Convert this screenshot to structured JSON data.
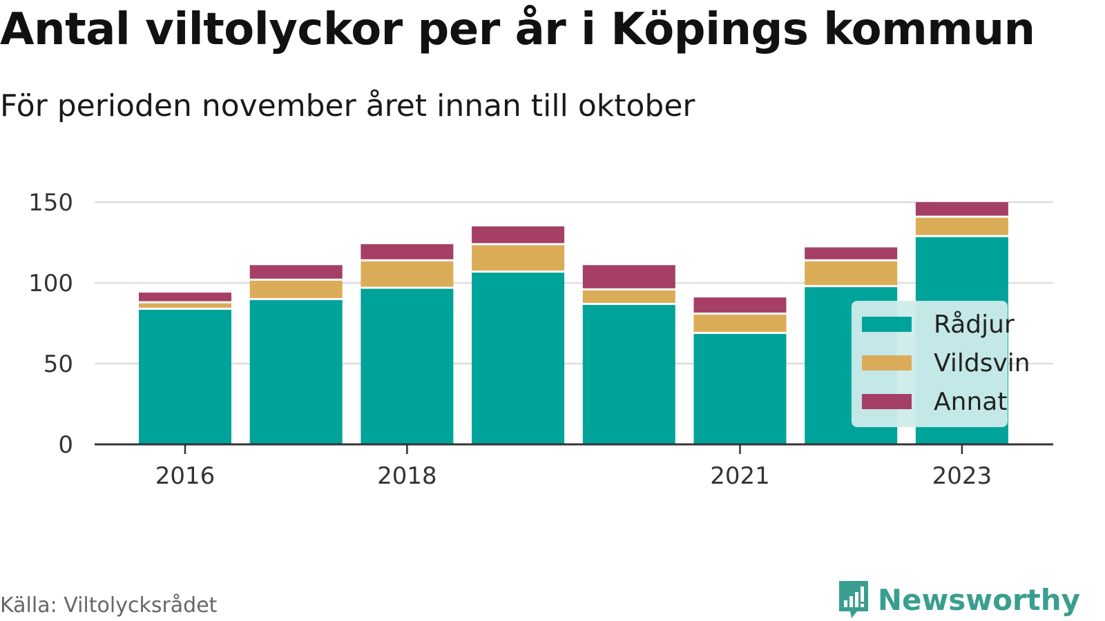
{
  "title": "Antal viltolyckor per år i Köpings kommun",
  "subtitle": "För perioden november året innan till oktober",
  "source": "Källa: Viltolycksrådet",
  "brand": "Newsworthy",
  "colors": {
    "radjur": "#00a39a",
    "vildsvin": "#dbac57",
    "annat": "#a63f66",
    "grid": "#dddddd",
    "axis": "#333333",
    "legend_bg": "#cdeceb",
    "brand": "#3a9e8f"
  },
  "chart_data": {
    "type": "bar",
    "stacked": true,
    "categories": [
      "2016",
      "2017",
      "2018",
      "2019",
      "2020",
      "2021",
      "2022",
      "2023"
    ],
    "x_tick_labels": [
      "2016",
      "",
      "2018",
      "",
      "",
      "2021",
      "",
      "2023"
    ],
    "series": [
      {
        "name": "Rådjur",
        "values": [
          84,
          90,
          97,
          107,
          87,
          69,
          98,
          129
        ]
      },
      {
        "name": "Vildsvin",
        "values": [
          4,
          12,
          17,
          17,
          9,
          12,
          16,
          12
        ]
      },
      {
        "name": "Annat",
        "values": [
          6,
          9,
          10,
          11,
          15,
          10,
          8,
          9
        ]
      }
    ],
    "ylim": [
      0,
      150
    ],
    "yticks": [
      0,
      50,
      100,
      150
    ],
    "grid": true,
    "legend": "right"
  }
}
